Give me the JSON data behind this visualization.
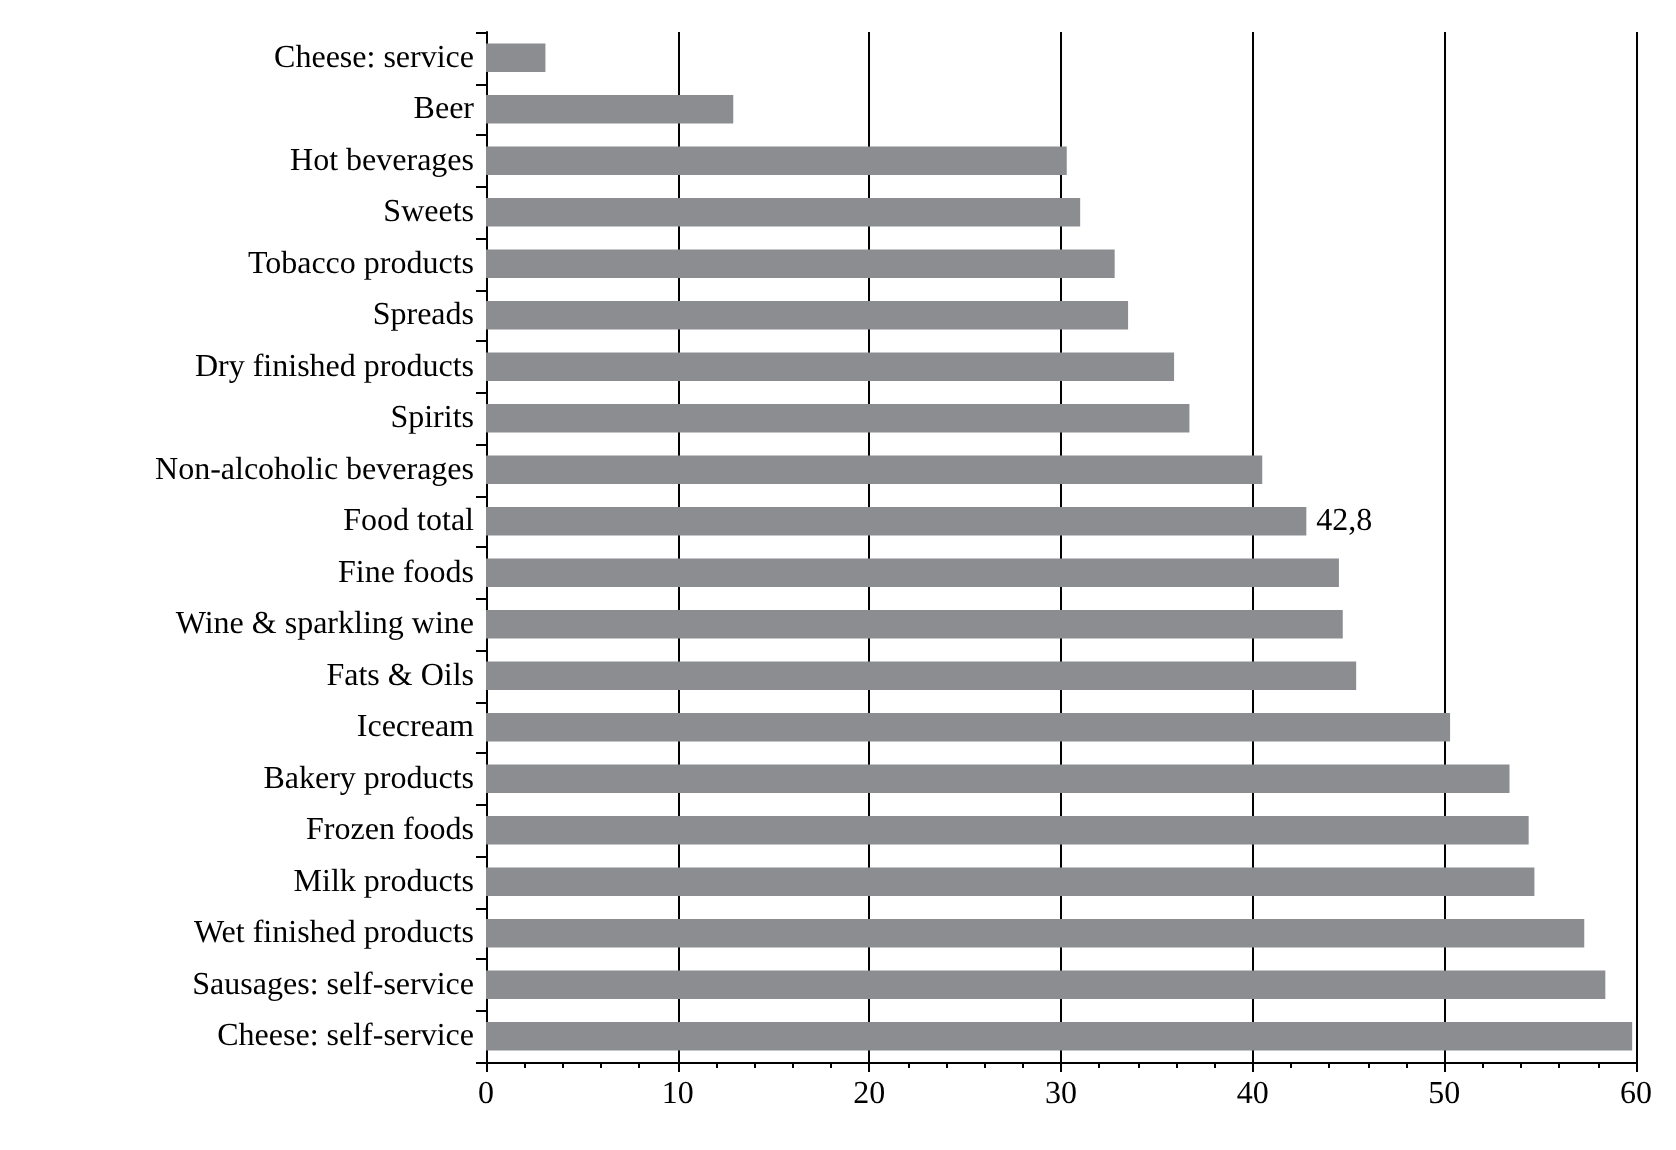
{
  "chart_data": {
    "type": "bar",
    "orientation": "horizontal",
    "categories": [
      "Cheese: service",
      "Beer",
      "Hot beverages",
      "Sweets",
      "Tobacco products",
      "Spreads",
      "Dry finished products",
      "Spirits",
      "Non-alcoholic beverages",
      "Food total",
      "Fine foods",
      "Wine & sparkling wine",
      "Fats & Oils",
      "Icecream",
      "Bakery products",
      "Frozen foods",
      "Milk products",
      "Wet finished products",
      "Sausages: self-service",
      "Cheese: self-service"
    ],
    "values": [
      3.1,
      12.9,
      30.3,
      31.0,
      32.8,
      33.5,
      35.9,
      36.7,
      40.5,
      42.8,
      44.5,
      44.7,
      45.4,
      50.3,
      53.4,
      54.4,
      54.7,
      57.3,
      58.4,
      59.8
    ],
    "value_labels": [
      null,
      null,
      null,
      null,
      null,
      null,
      null,
      null,
      null,
      "42,8",
      null,
      null,
      null,
      null,
      null,
      null,
      null,
      null,
      null,
      null
    ],
    "color": "#8c8d91",
    "xlim": [
      0,
      60
    ],
    "xticks": [
      0,
      10,
      20,
      30,
      40,
      50,
      60
    ],
    "grid": "x"
  }
}
